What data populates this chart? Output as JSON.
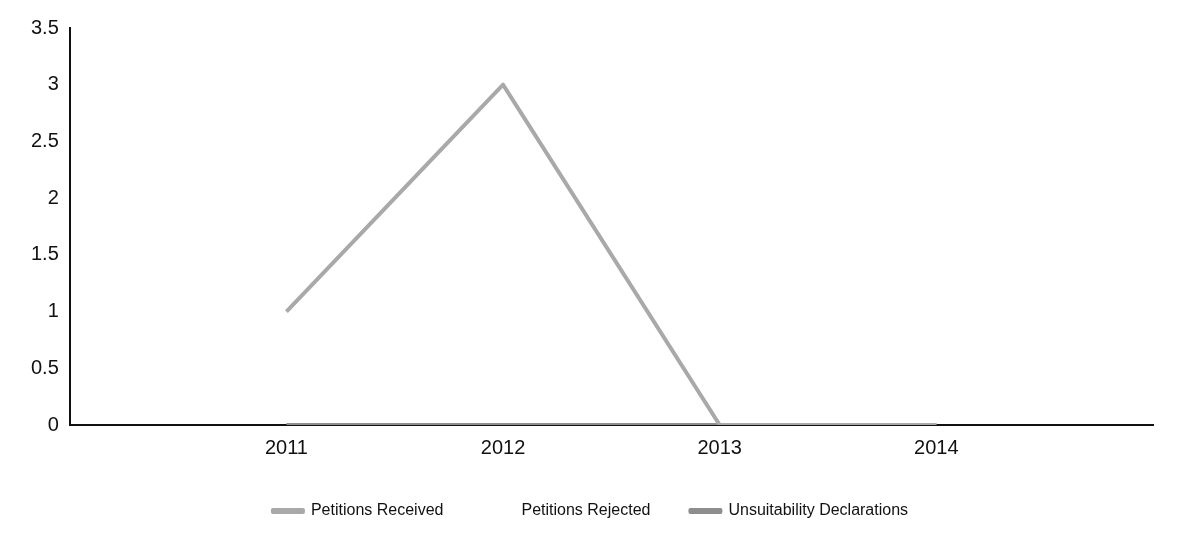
{
  "chart_data": {
    "type": "line",
    "categories": [
      "2011",
      "2012",
      "2013",
      "2014"
    ],
    "series": [
      {
        "name": "Petitions Received",
        "color": "#a9a9a9",
        "values": [
          1,
          3,
          0,
          0
        ]
      },
      {
        "name": "Petitions Rejected",
        "values": [
          null,
          null,
          null,
          null
        ]
      },
      {
        "name": "Unsuitability Declarations",
        "color": "#8e8e8e",
        "values": [
          0,
          0,
          0,
          0
        ]
      }
    ],
    "ylim": [
      0,
      3.5
    ],
    "yticks": [
      0,
      0.5,
      1,
      1.5,
      2,
      2.5,
      3,
      3.5
    ],
    "grid": false,
    "legend": "bottom",
    "marker": "none",
    "line_style": "solid"
  }
}
